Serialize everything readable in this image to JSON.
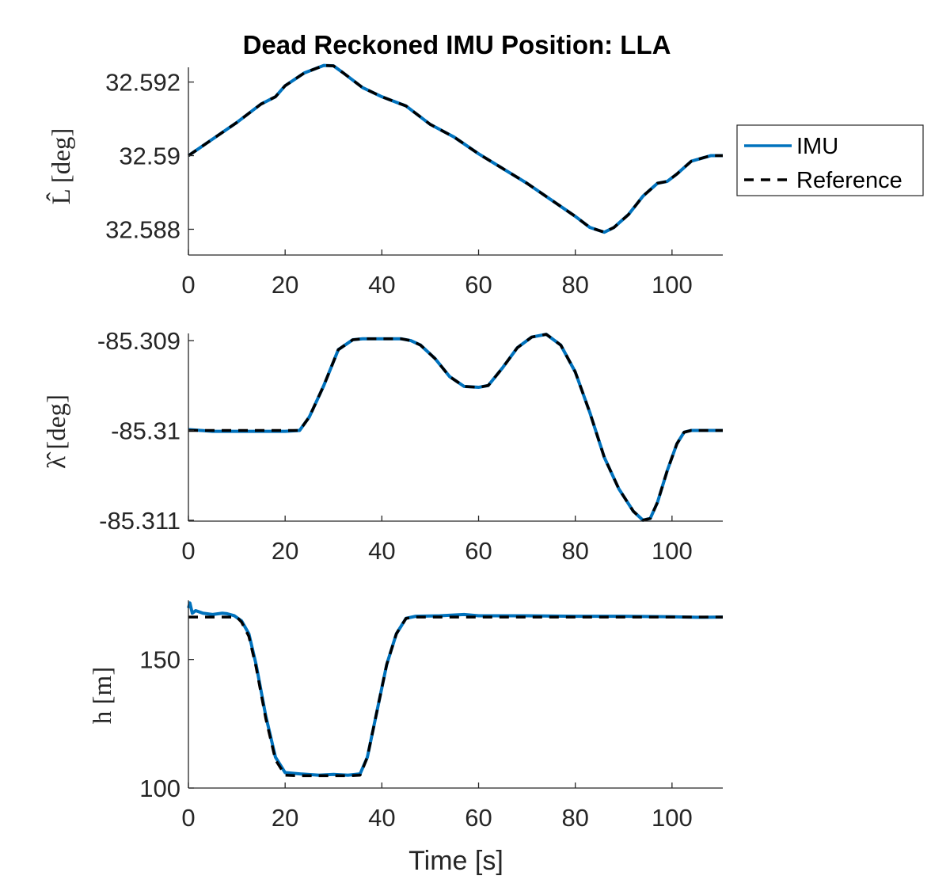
{
  "figure": {
    "title": "Dead Reckoned IMU Position: LLA",
    "xlabel": "Time [s]"
  },
  "legend": {
    "placement": "right of top panel",
    "entries": [
      {
        "label": "IMU",
        "color": "#0072BD",
        "style": "solid"
      },
      {
        "label": "Reference",
        "color": "#000000",
        "style": "dashed"
      }
    ]
  },
  "chart_data": [
    {
      "type": "line",
      "ylabel": "L̂ [deg]",
      "xlim": [
        0,
        110.5
      ],
      "ylim": [
        32.5873,
        32.5924
      ],
      "xticks": [
        0,
        20,
        40,
        60,
        80,
        100
      ],
      "yticks": [
        32.588,
        32.59,
        32.592
      ],
      "ytick_labels": [
        "32.588",
        "32.59",
        "32.592"
      ],
      "series": [
        {
          "name": "IMU",
          "color": "#0072BD",
          "x": [
            0,
            5,
            10,
            15,
            18,
            20,
            24,
            28,
            30,
            32,
            36,
            40,
            45,
            50,
            55,
            60,
            65,
            70,
            75,
            80,
            83,
            86,
            88,
            91,
            94,
            97,
            99,
            101,
            104,
            108,
            110.5
          ],
          "y": [
            32.59,
            32.59045,
            32.5909,
            32.5914,
            32.5916,
            32.5919,
            32.59225,
            32.59245,
            32.59244,
            32.59225,
            32.59185,
            32.5916,
            32.59135,
            32.59085,
            32.5905,
            32.59005,
            32.58965,
            32.58925,
            32.5888,
            32.58835,
            32.58805,
            32.58792,
            32.58805,
            32.5884,
            32.5889,
            32.58925,
            32.5893,
            32.5895,
            32.58985,
            32.59,
            32.59
          ]
        },
        {
          "name": "Reference",
          "color": "#000000",
          "x": [
            0,
            5,
            10,
            15,
            18,
            20,
            24,
            28,
            30,
            32,
            36,
            40,
            45,
            50,
            55,
            60,
            65,
            70,
            75,
            80,
            83,
            86,
            88,
            91,
            94,
            97,
            99,
            101,
            104,
            108,
            110.5
          ],
          "y": [
            32.59,
            32.59045,
            32.5909,
            32.5914,
            32.5916,
            32.5919,
            32.59225,
            32.59245,
            32.59244,
            32.59225,
            32.59185,
            32.5916,
            32.59135,
            32.59085,
            32.5905,
            32.59005,
            32.58965,
            32.58925,
            32.5888,
            32.58835,
            32.58805,
            32.58792,
            32.58805,
            32.5884,
            32.5889,
            32.58925,
            32.5893,
            32.5895,
            32.58985,
            32.59,
            32.59
          ]
        }
      ]
    },
    {
      "type": "line",
      "ylabel": "λ̂ [deg]",
      "xlim": [
        0,
        110.5
      ],
      "ylim": [
        -85.31101,
        -85.30892
      ],
      "xticks": [
        0,
        20,
        40,
        60,
        80,
        100
      ],
      "yticks": [
        -85.311,
        -85.31,
        -85.309
      ],
      "ytick_labels": [
        "-85.311",
        "-85.31",
        "-85.309"
      ],
      "series": [
        {
          "name": "IMU",
          "color": "#0072BD",
          "x": [
            0,
            5,
            10,
            15,
            20,
            23,
            25,
            28,
            31,
            34,
            36,
            40,
            44,
            46,
            48,
            51,
            54,
            57,
            60,
            62,
            65,
            68,
            71,
            74,
            77,
            80,
            83,
            86,
            89,
            92,
            94,
            95.5,
            97,
            99,
            101,
            102.5,
            104,
            110.5
          ],
          "y": [
            -85.30999,
            -85.31001,
            -85.31001,
            -85.31001,
            -85.31001,
            -85.31,
            -85.30985,
            -85.3095,
            -85.3091,
            -85.30899,
            -85.30898,
            -85.30898,
            -85.30898,
            -85.309,
            -85.30905,
            -85.3092,
            -85.3094,
            -85.30951,
            -85.30952,
            -85.3095,
            -85.3093,
            -85.30908,
            -85.30896,
            -85.30893,
            -85.30905,
            -85.30935,
            -85.3098,
            -85.3103,
            -85.31065,
            -85.3109,
            -85.311,
            -85.31098,
            -85.3108,
            -85.31045,
            -85.31015,
            -85.31002,
            -85.31,
            -85.31
          ]
        },
        {
          "name": "Reference",
          "color": "#000000",
          "x": [
            0,
            5,
            10,
            15,
            20,
            23,
            25,
            28,
            31,
            34,
            36,
            40,
            44,
            46,
            48,
            51,
            54,
            57,
            60,
            62,
            65,
            68,
            71,
            74,
            77,
            80,
            83,
            86,
            89,
            92,
            94,
            95.5,
            97,
            99,
            101,
            102.5,
            104,
            110.5
          ],
          "y": [
            -85.31,
            -85.31,
            -85.31,
            -85.31,
            -85.31,
            -85.31,
            -85.30985,
            -85.3095,
            -85.3091,
            -85.30899,
            -85.30898,
            -85.30898,
            -85.30898,
            -85.309,
            -85.30905,
            -85.3092,
            -85.3094,
            -85.30951,
            -85.30952,
            -85.3095,
            -85.3093,
            -85.30908,
            -85.30896,
            -85.30893,
            -85.30905,
            -85.30935,
            -85.3098,
            -85.3103,
            -85.31065,
            -85.3109,
            -85.311,
            -85.31098,
            -85.3108,
            -85.31045,
            -85.31015,
            -85.31002,
            -85.31,
            -85.31
          ]
        }
      ]
    },
    {
      "type": "line",
      "ylabel": "h [m]",
      "xlim": [
        0,
        110.5
      ],
      "ylim": [
        100,
        173
      ],
      "xticks": [
        0,
        20,
        40,
        60,
        80,
        100
      ],
      "yticks": [
        100,
        150
      ],
      "ytick_labels": [
        "100",
        "150"
      ],
      "series": [
        {
          "name": "IMU",
          "color": "#0072BD",
          "x": [
            0,
            0.3,
            0.8,
            1.5,
            3,
            5,
            7,
            8,
            9.5,
            11,
            12.5,
            14,
            16,
            18,
            20,
            23,
            27,
            30,
            33,
            35.5,
            37,
            39,
            41,
            43,
            45,
            47,
            52,
            57,
            60,
            70,
            80,
            90,
            100,
            105,
            110.5
          ],
          "y": [
            170,
            172,
            168,
            169,
            168,
            167.5,
            168,
            167.8,
            167,
            165,
            160,
            148,
            128,
            112,
            106,
            105.5,
            105,
            105.3,
            105,
            105.5,
            112,
            130,
            148,
            160,
            166,
            166.8,
            167,
            167.5,
            167,
            167,
            166.8,
            166.8,
            166.6,
            166.4,
            166.5
          ]
        },
        {
          "name": "Reference",
          "color": "#000000",
          "x": [
            0,
            10,
            11,
            12.5,
            14,
            16,
            18,
            20,
            23,
            27,
            30,
            33,
            35.5,
            37,
            39,
            41,
            43,
            45,
            47,
            60,
            80,
            100,
            110.5
          ],
          "y": [
            166.5,
            166.5,
            164.5,
            159,
            147,
            127,
            111,
            105,
            104.8,
            104.8,
            104.8,
            104.8,
            105,
            112,
            130,
            148,
            160,
            166,
            166.5,
            166.5,
            166.5,
            166.5,
            166.5
          ]
        }
      ]
    }
  ]
}
